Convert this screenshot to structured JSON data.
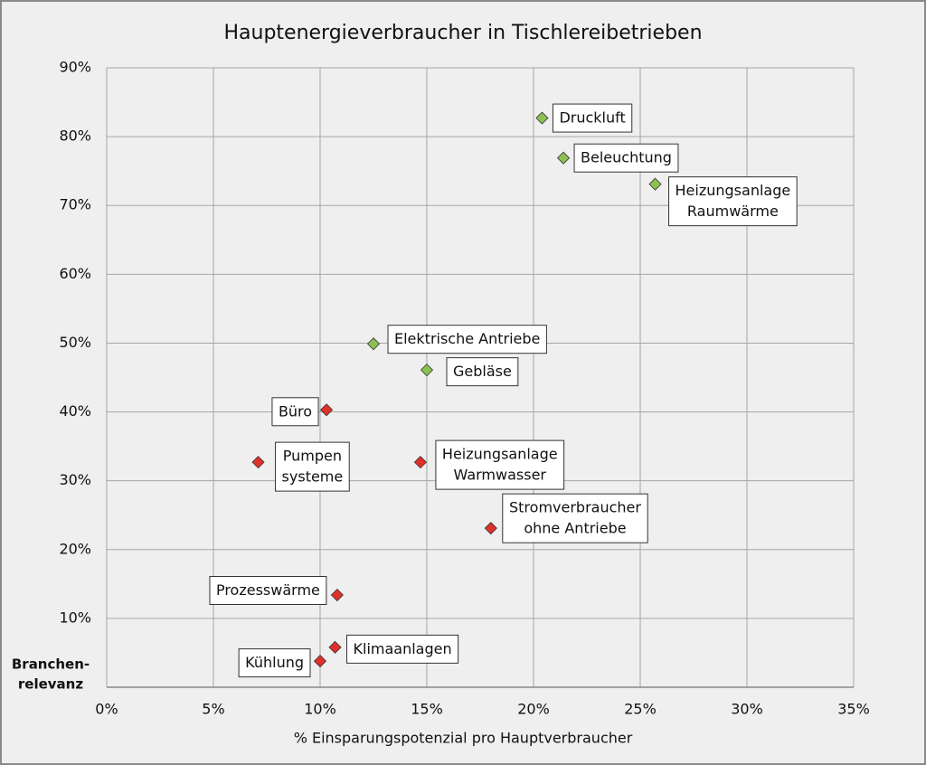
{
  "chart_data": {
    "type": "scatter",
    "title": "Hauptenergieverbraucher in Tischlereibetrieben",
    "x_label": "% Einsparungspotenzial pro Hauptverbraucher",
    "y_label": [
      "Branchen-",
      "relevanz"
    ],
    "xlim": [
      0,
      35
    ],
    "ylim": [
      0,
      90
    ],
    "xticks": [
      {
        "value": 0,
        "label": "0%"
      },
      {
        "value": 5,
        "label": "5%"
      },
      {
        "value": 10,
        "label": "10%"
      },
      {
        "value": 15,
        "label": "15%"
      },
      {
        "value": 20,
        "label": "20%"
      },
      {
        "value": 25,
        "label": "25%"
      },
      {
        "value": 30,
        "label": "30%"
      },
      {
        "value": 35,
        "label": "35%"
      }
    ],
    "yticks": [
      {
        "value": 10,
        "label": "10%"
      },
      {
        "value": 20,
        "label": "20%"
      },
      {
        "value": 30,
        "label": "30%"
      },
      {
        "value": 40,
        "label": "40%"
      },
      {
        "value": 50,
        "label": "50%"
      },
      {
        "value": 60,
        "label": "60%"
      },
      {
        "value": 70,
        "label": "70%"
      },
      {
        "value": 80,
        "label": "80%"
      },
      {
        "value": 90,
        "label": "90%"
      }
    ],
    "grid": true,
    "points": [
      {
        "label": [
          "Druckluft"
        ],
        "x": 20.4,
        "y": 82.7,
        "color": "#8cc152"
      },
      {
        "label": [
          "Beleuchtung"
        ],
        "x": 21.4,
        "y": 76.9,
        "color": "#8cc152"
      },
      {
        "label": [
          "Heizungsanlage",
          "Raumwärme"
        ],
        "x": 25.7,
        "y": 73.1,
        "color": "#8cc152"
      },
      {
        "label": [
          "Elektrische Antriebe"
        ],
        "x": 12.5,
        "y": 49.9,
        "color": "#8cc152"
      },
      {
        "label": [
          "Gebläse"
        ],
        "x": 15.0,
        "y": 46.1,
        "color": "#8cc152"
      },
      {
        "label": [
          "Büro"
        ],
        "x": 10.3,
        "y": 40.3,
        "color": "#e0302b"
      },
      {
        "label": [
          "Pumpen",
          "systeme"
        ],
        "x": 7.1,
        "y": 32.7,
        "color": "#e0302b"
      },
      {
        "label": [
          "Heizungsanlage",
          "Warmwasser"
        ],
        "x": 14.7,
        "y": 32.7,
        "color": "#e0302b"
      },
      {
        "label": [
          "Stromverbraucher",
          "ohne Antriebe"
        ],
        "x": 18.0,
        "y": 23.1,
        "color": "#e0302b"
      },
      {
        "label": [
          "Prozesswärme"
        ],
        "x": 10.8,
        "y": 13.4,
        "color": "#e0302b"
      },
      {
        "label": [
          "Klimaanlagen"
        ],
        "x": 10.7,
        "y": 5.8,
        "color": "#e0302b"
      },
      {
        "label": [
          "Kühlung"
        ],
        "x": 10.0,
        "y": 3.8,
        "color": "#e0302b"
      }
    ]
  }
}
